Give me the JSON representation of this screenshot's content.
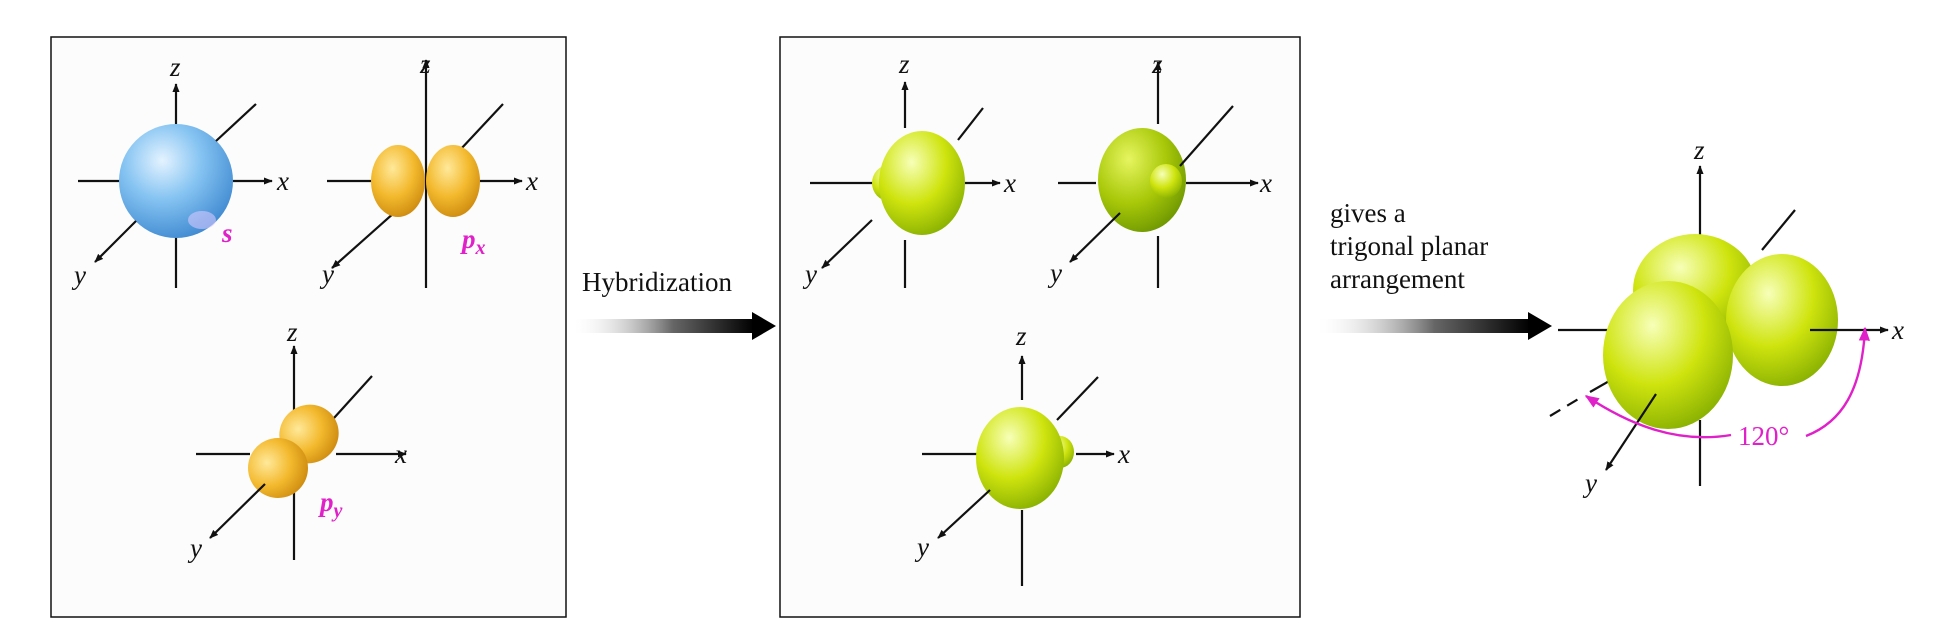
{
  "axes": {
    "x": "x",
    "y": "y",
    "z": "z"
  },
  "orbital_labels": {
    "s": "s",
    "px_main": "p",
    "px_sub": "x",
    "py_main": "p",
    "py_sub": "y"
  },
  "step1": {
    "label": "Hybridization"
  },
  "step2": {
    "lines": [
      "gives a",
      "trigonal planar",
      "arrangement"
    ]
  },
  "angle": "120°",
  "colors": {
    "s_orbital": "#6fb4ea",
    "p_orbital": "#f2b42a",
    "hybrid_orbital": "#cde20c",
    "label": "#e020c8"
  }
}
